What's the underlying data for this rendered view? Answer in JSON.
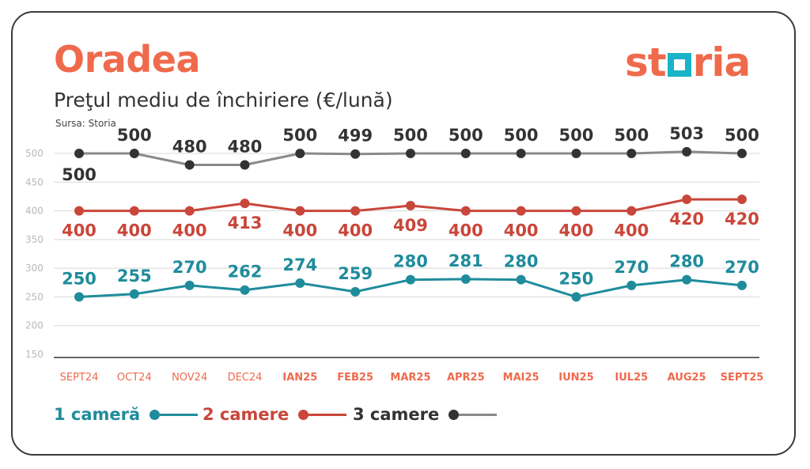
{
  "header": {
    "title": "Oradea",
    "subtitle": "Preţul mediu de închiriere (€/lună)",
    "source": "Sursa: Storia",
    "logo_text_left": "st",
    "logo_text_right": "ria"
  },
  "colors": {
    "accent": "#ef6a4c",
    "teal": "#1f8c9c",
    "red": "#c9463a",
    "dark": "#333333",
    "grey_line": "#8a8a8a",
    "logo_box": "#1ab3c7"
  },
  "legend": {
    "one_room": "1 cameră",
    "two_rooms": "2 camere",
    "three_rooms": "3 camere"
  },
  "chart_data": {
    "type": "line",
    "categories": [
      "SEPT24",
      "OCT24",
      "NOV24",
      "DEC24",
      "IAN25",
      "FEB25",
      "MAR25",
      "APR25",
      "MAI25",
      "IUN25",
      "IUL25",
      "AUG25",
      "SEPT25"
    ],
    "y_ticks": [
      150,
      200,
      250,
      300,
      350,
      400,
      450,
      500
    ],
    "ylim": [
      150,
      500
    ],
    "grid": true,
    "legend_position": "bottom",
    "series": [
      {
        "name": "1 cameră",
        "color": "#1f8c9c",
        "values": [
          250,
          255,
          270,
          262,
          274,
          259,
          280,
          281,
          280,
          250,
          270,
          280,
          270
        ]
      },
      {
        "name": "2 camere",
        "color": "#c9463a",
        "values": [
          400,
          400,
          400,
          413,
          400,
          400,
          409,
          400,
          400,
          400,
          400,
          420,
          420
        ]
      },
      {
        "name": "3 camere",
        "color": "#8a8a8a",
        "dot_color": "#333333",
        "values": [
          500,
          500,
          480,
          480,
          500,
          499,
          500,
          500,
          500,
          500,
          500,
          503,
          500
        ]
      }
    ]
  }
}
